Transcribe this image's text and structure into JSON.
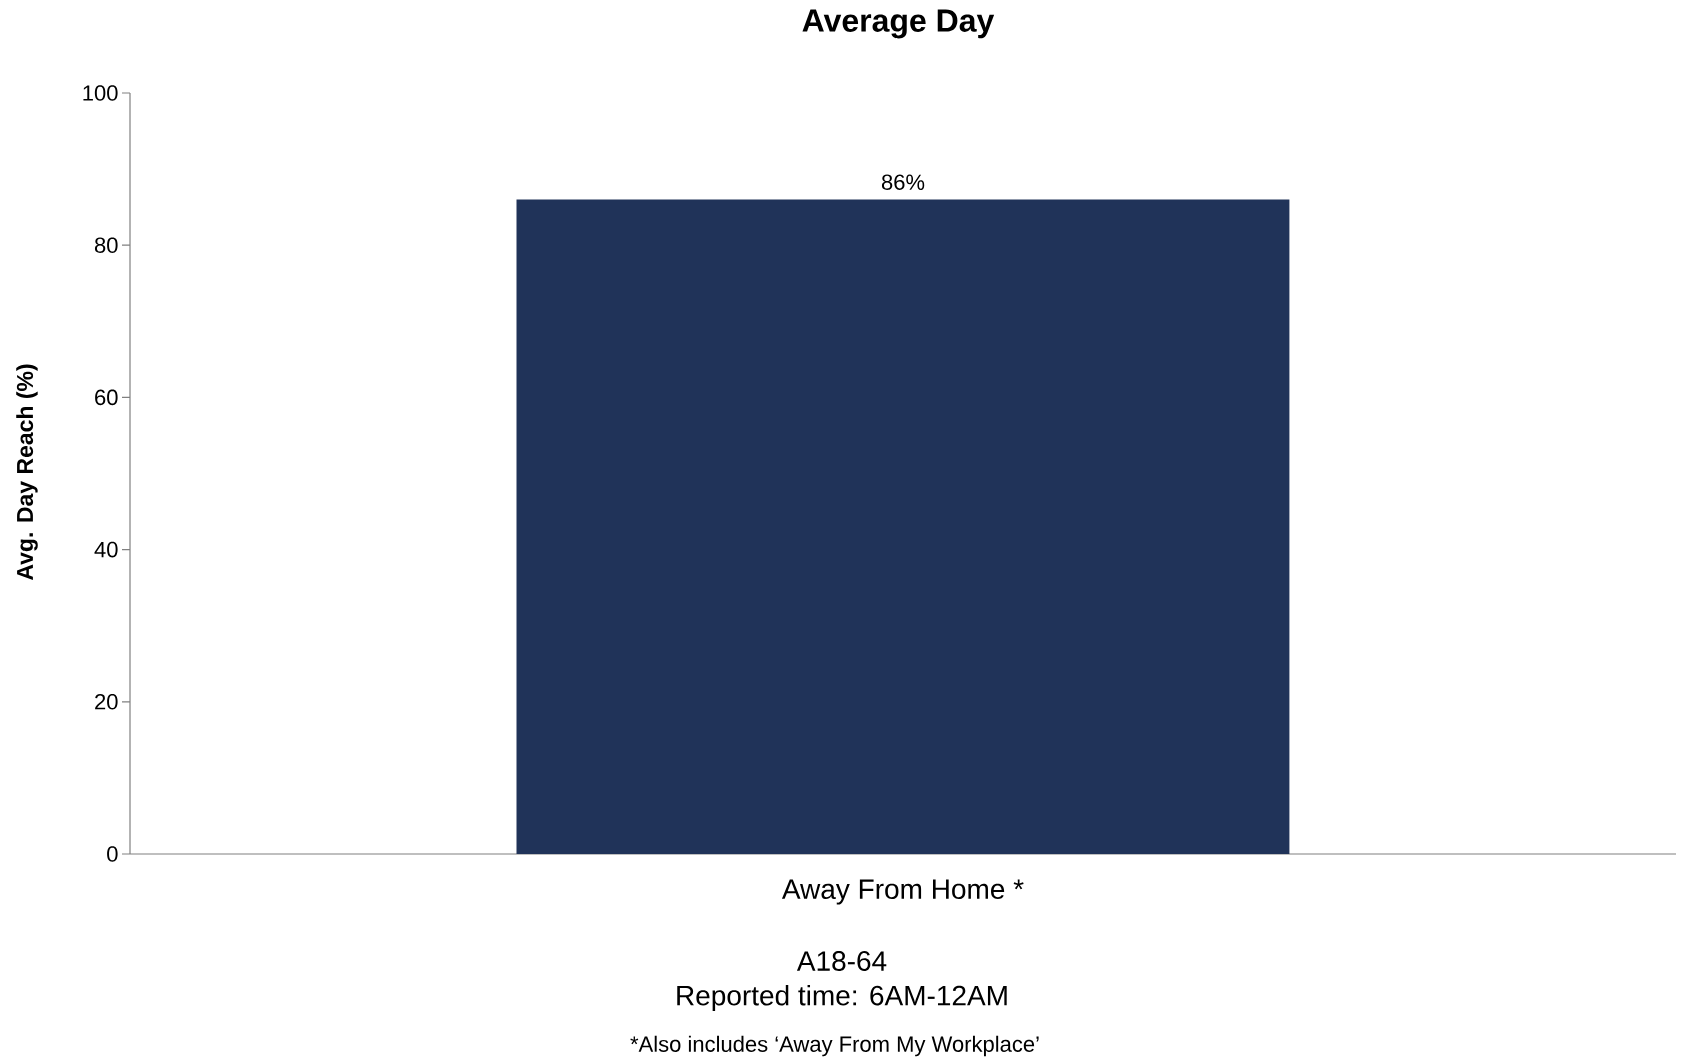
{
  "chart_data": {
    "type": "bar",
    "title": "Average Day",
    "ylabel": "Avg. Day Reach (%)",
    "categories": [
      "Away From Home *"
    ],
    "values": [
      86
    ],
    "value_labels": [
      "86%"
    ],
    "color": "#203359",
    "ylim": [
      0,
      100
    ],
    "yticks": [
      0,
      20,
      40,
      60,
      80,
      100
    ],
    "annotations": [
      "A18-64",
      "Reported time: 6AM-12AM",
      "*Also includes ‘Away From My Workplace’"
    ]
  }
}
